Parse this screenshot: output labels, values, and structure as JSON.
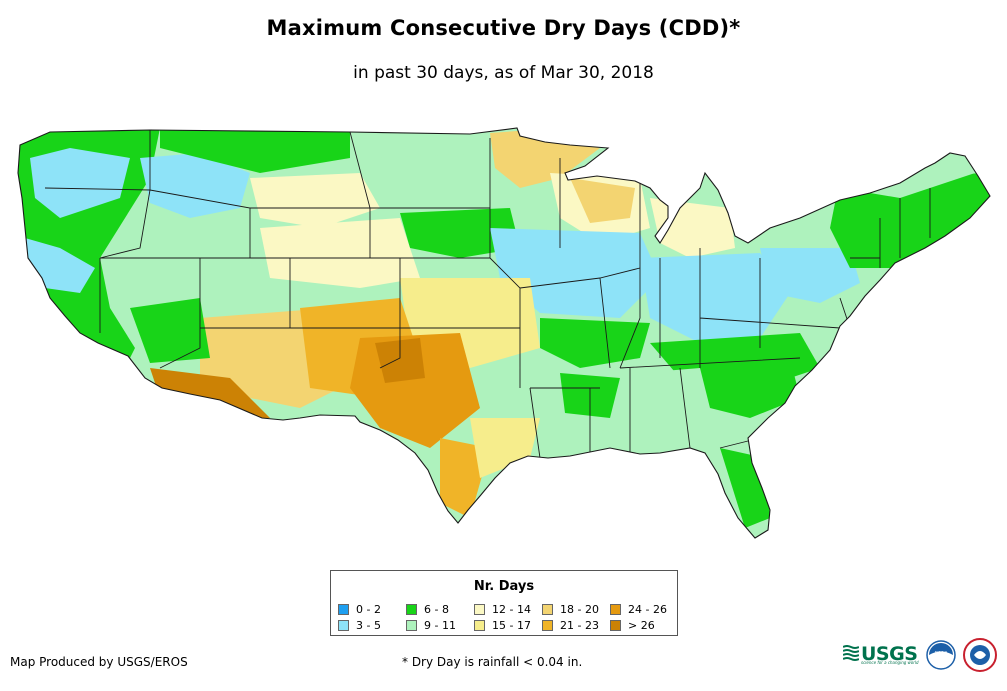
{
  "header": {
    "title": "Maximum Consecutive Dry Days (CDD)*",
    "subtitle": "in past 30 days, as of Mar 30, 2018"
  },
  "legend": {
    "title": "Nr. Days",
    "items": [
      {
        "label": "0 - 2",
        "color": "#1e9ff0"
      },
      {
        "label": "3 - 5",
        "color": "#8ee3f8"
      },
      {
        "label": "6 - 8",
        "color": "#18d418"
      },
      {
        "label": "9 - 11",
        "color": "#aef2bd"
      },
      {
        "label": "12 - 14",
        "color": "#fbf8c4"
      },
      {
        "label": "15 - 17",
        "color": "#f6ed8c"
      },
      {
        "label": "18 - 20",
        "color": "#f3d471"
      },
      {
        "label": "21 - 23",
        "color": "#f0b428"
      },
      {
        "label": "24 - 26",
        "color": "#e59a10"
      },
      {
        "label": "> 26",
        "color": "#cc8205"
      }
    ]
  },
  "footer": {
    "credit": "Map Produced by USGS/EROS",
    "footnote": "* Dry Day is rainfall < 0.04 in."
  },
  "logos": {
    "usgs_text": "USGS",
    "usgs_tagline": "science for a changing world",
    "noaa_text": "noaa"
  },
  "colors": {
    "border": "#1a1a1a",
    "usgs_green": "#00724d",
    "noaa_blue": "#1c5fa8"
  }
}
